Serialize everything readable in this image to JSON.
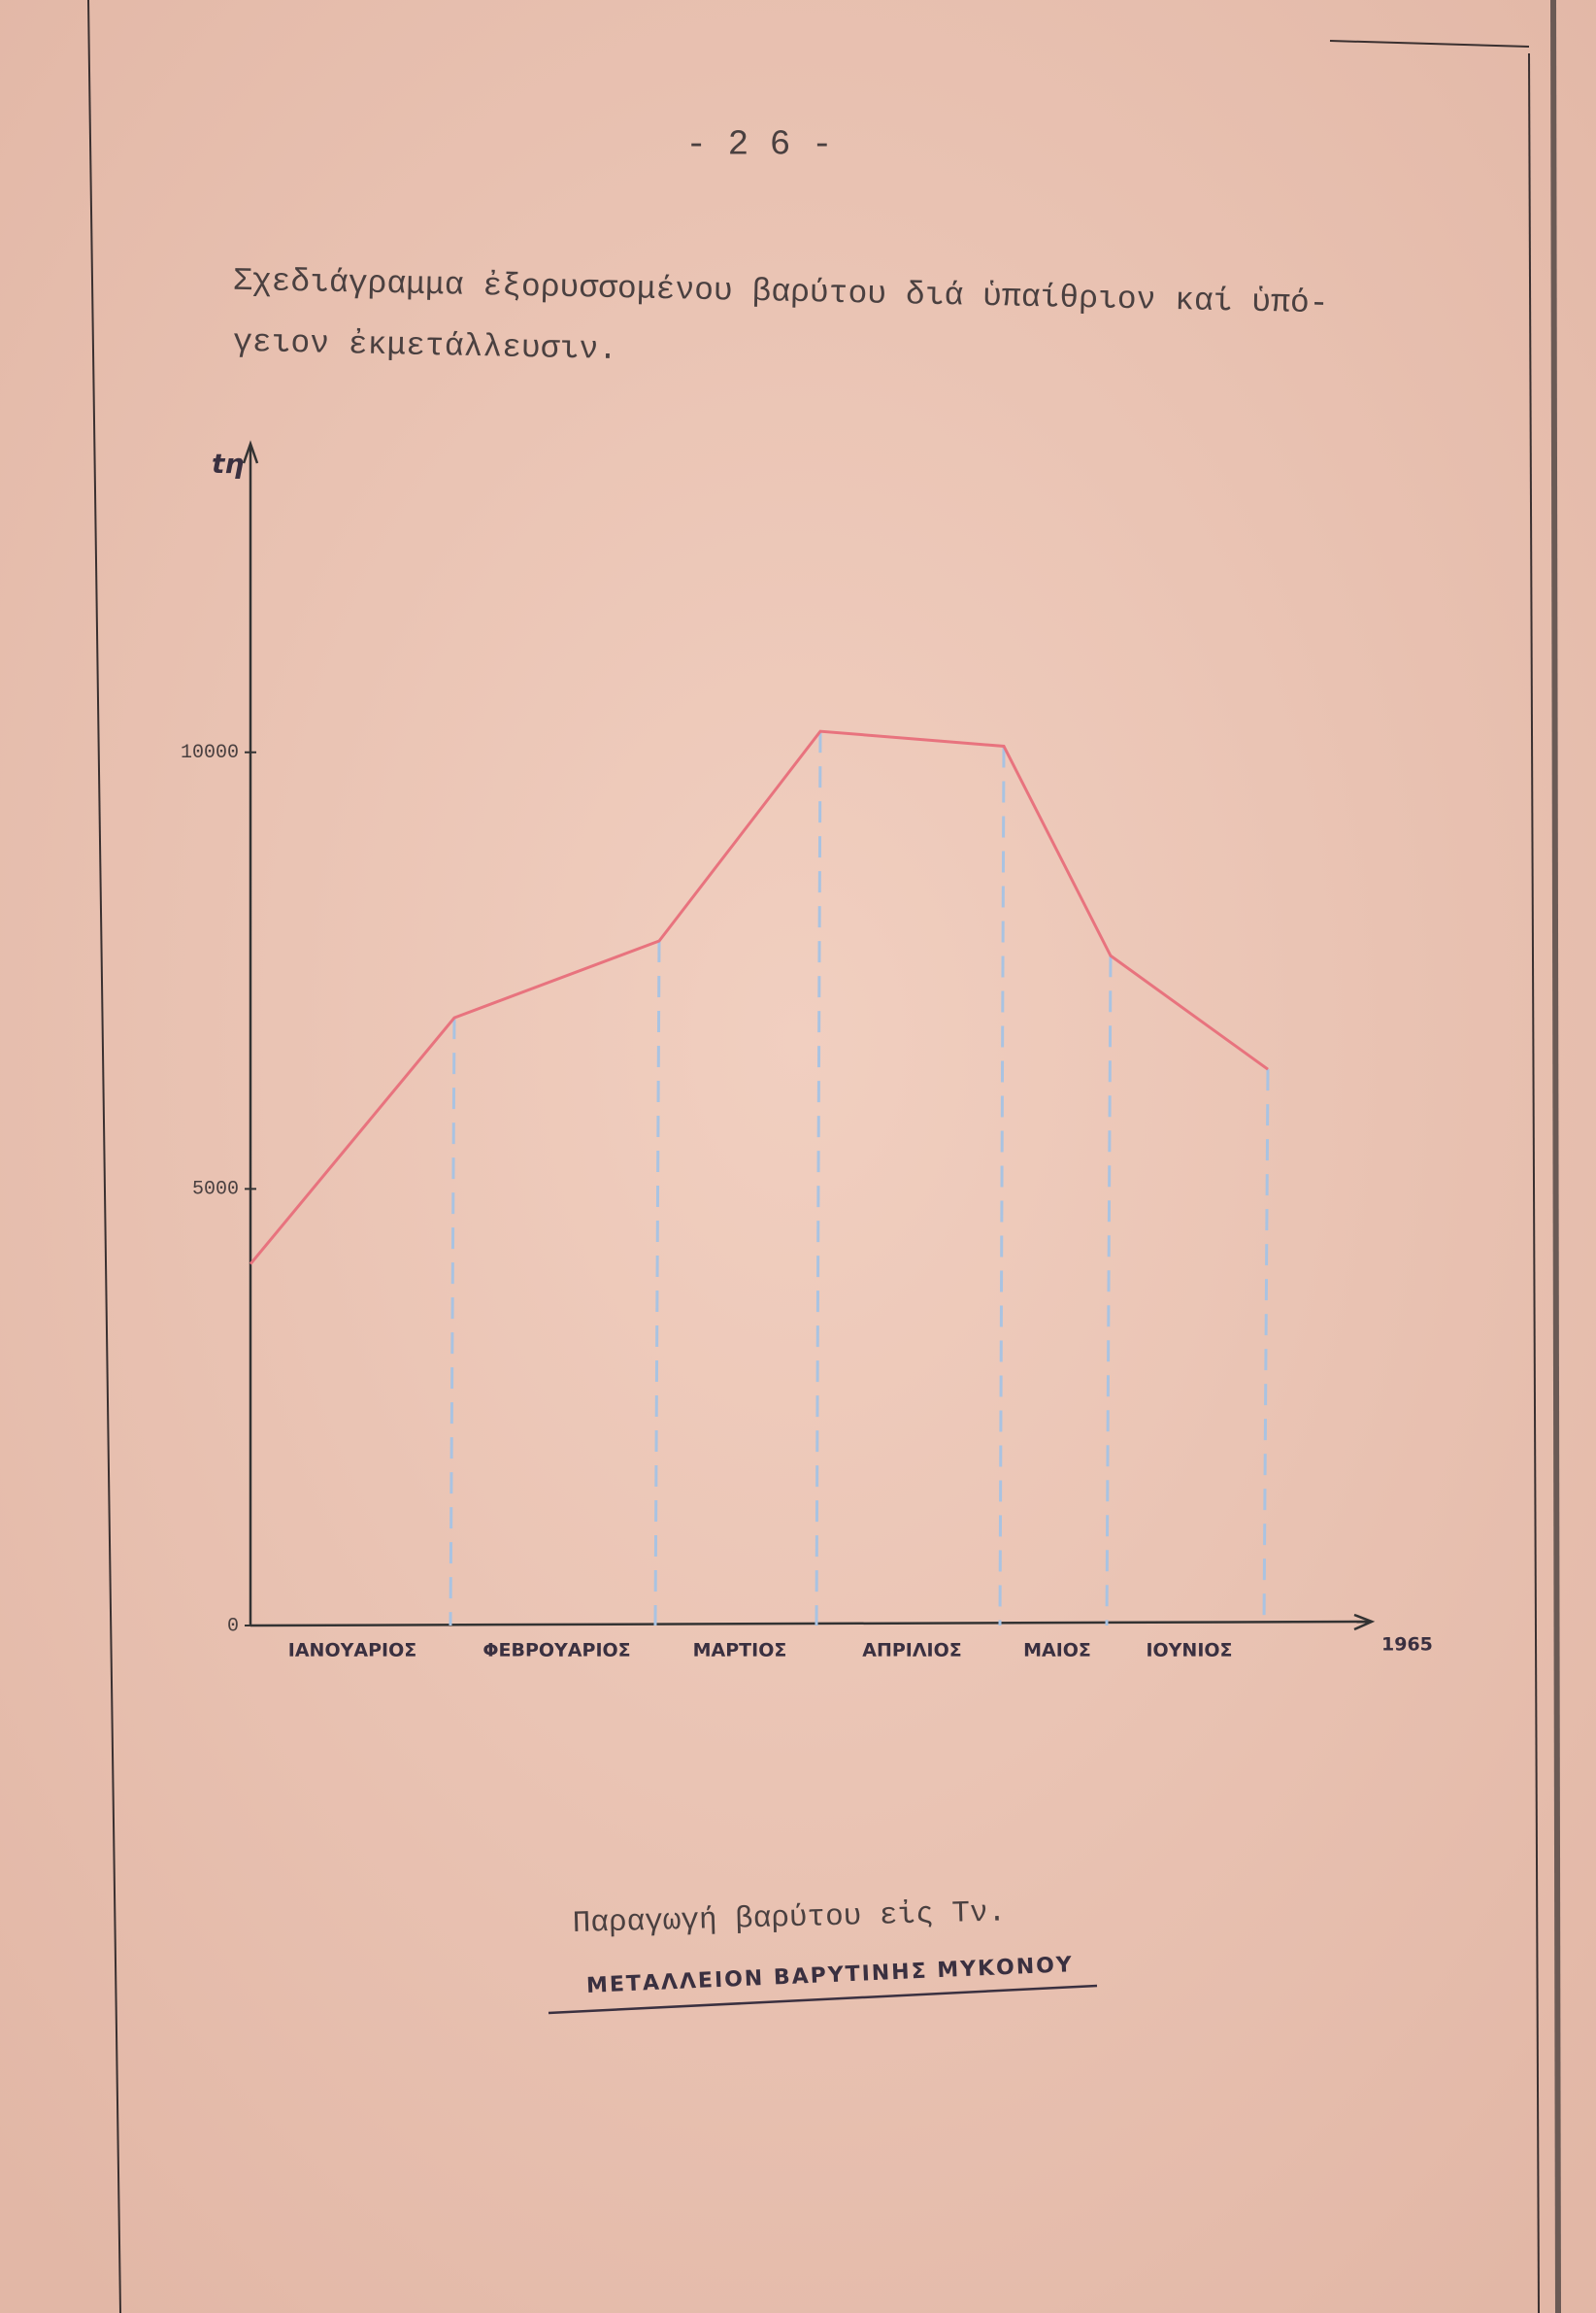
{
  "page_number": "- 2 6 -",
  "heading": [
    "Σχεδιάγραμμα ἐξορυσσομένου βαρύτου διά ὑπαίθριον καί ὑπό-",
    "γειον ἐκμετάλλευσιν."
  ],
  "caption": "Παραγωγή βαρύτου εἰς Τν.",
  "subcaption": "ΜΕΤΑΛΛΕΙΟΝ ΒΑΡΥΤΙΝΗΣ ΜΥΚΟΝΟΥ",
  "chart_data": {
    "type": "line",
    "y_label": "tη",
    "x_label": "1965",
    "categories": [
      null,
      "ΙΑΝΟΥΑΡΙΟΣ",
      "ΦΕΒΡΟΥΑΡΙΟΣ",
      "ΜΑΡΤΙΟΣ",
      "ΑΠΡΙΛΙΟΣ",
      "ΜΑΙΟΣ",
      "ΙΟΥΝΙΟΣ"
    ],
    "values": [
      4140,
      6960,
      7840,
      10240,
      10070,
      7670,
      6370
    ],
    "color": "#e8737e",
    "drop_color": "#a9c3e2",
    "ylim": [
      0,
      13400
    ],
    "yticks": [
      0,
      5000,
      10000
    ]
  }
}
